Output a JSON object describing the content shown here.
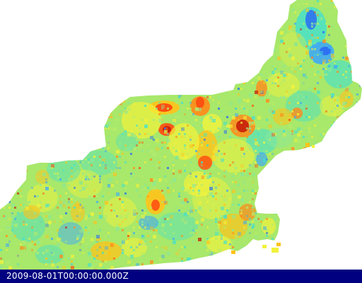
{
  "map": {
    "base_color": "#a8e86a",
    "timestamp": "2009-08-01T00:00:00.000Z",
    "palette": [
      "#2b6cf2",
      "#3fa9f5",
      "#40e0d0",
      "#8ae89a",
      "#b5ec6a",
      "#f2f23c",
      "#ffc31a",
      "#ff8a1a",
      "#ff4a10",
      "#c81e0a"
    ],
    "footer_color": "#000080"
  }
}
